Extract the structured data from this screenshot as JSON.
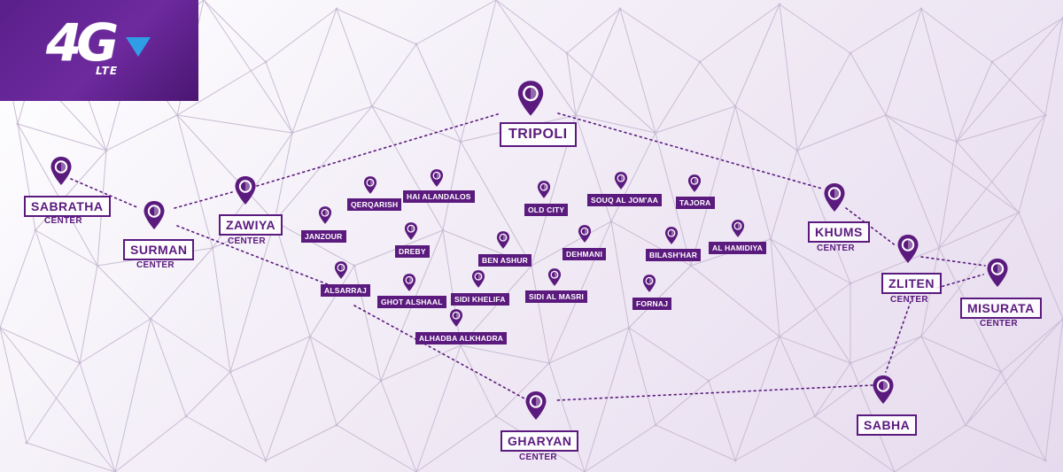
{
  "logo": {
    "main": "4G",
    "sub": "LTE"
  },
  "colors": {
    "primary": "#5b1a7e",
    "accent": "#2f9ee6",
    "mesh": "#c9bcd4"
  },
  "major_locations": [
    {
      "name": "TRIPOLI",
      "sub": ""
    },
    {
      "name": "SABRATHA",
      "sub": "CENTER"
    },
    {
      "name": "SURMAN",
      "sub": "CENTER"
    },
    {
      "name": "ZAWIYA",
      "sub": "CENTER"
    },
    {
      "name": "KHUMS",
      "sub": "CENTER"
    },
    {
      "name": "ZLITEN",
      "sub": "CENTER"
    },
    {
      "name": "MISURATA",
      "sub": "CENTER"
    },
    {
      "name": "SABHA",
      "sub": ""
    },
    {
      "name": "GHARYAN",
      "sub": "CENTER"
    }
  ],
  "neighborhoods": [
    "QERQARISH",
    "HAI ALANDALOS",
    "OLD CITY",
    "SOUQ AL JOM'AA",
    "TAJORA",
    "JANZOUR",
    "DREBY",
    "BEN ASHUR",
    "DEHMANI",
    "BILASH'HAR",
    "AL HAMIDIYA",
    "ALSARRAJ",
    "GHOT ALSHAAL",
    "SIDI KHELIFA",
    "SIDI AL MASRI",
    "FORNAJ",
    "ALHADBA ALKHADRA"
  ]
}
